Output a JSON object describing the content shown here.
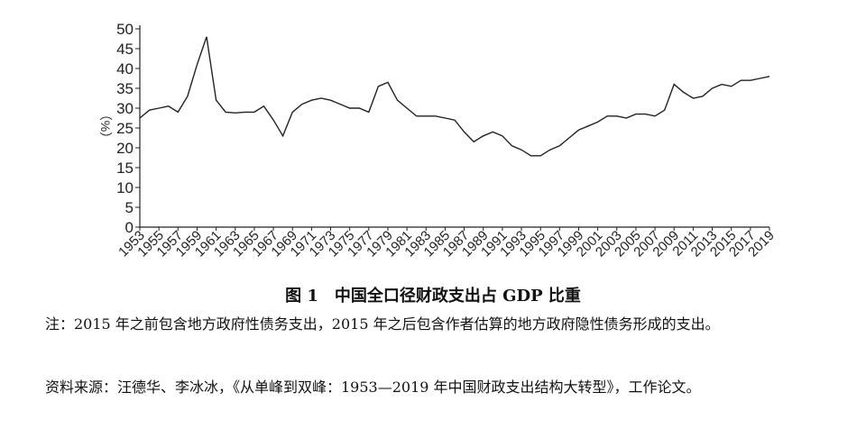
{
  "chart_data": {
    "type": "line",
    "y_label": "（%）",
    "x": [
      1953,
      1954,
      1955,
      1956,
      1957,
      1958,
      1959,
      1960,
      1961,
      1962,
      1963,
      1964,
      1965,
      1966,
      1967,
      1968,
      1969,
      1970,
      1971,
      1972,
      1973,
      1974,
      1975,
      1976,
      1977,
      1978,
      1979,
      1980,
      1981,
      1982,
      1983,
      1984,
      1985,
      1986,
      1987,
      1988,
      1989,
      1990,
      1991,
      1992,
      1993,
      1994,
      1995,
      1996,
      1997,
      1998,
      1999,
      2000,
      2001,
      2002,
      2003,
      2004,
      2005,
      2006,
      2007,
      2008,
      2009,
      2010,
      2011,
      2012,
      2013,
      2014,
      2015,
      2016,
      2017,
      2018,
      2019
    ],
    "values": [
      27.5,
      29.5,
      30,
      30.5,
      29,
      33,
      41,
      48,
      32,
      29,
      28.8,
      29,
      29,
      30.5,
      27,
      23,
      29,
      31,
      32,
      32.5,
      32,
      31,
      30,
      30,
      29,
      35.5,
      36.5,
      32,
      30,
      28,
      28,
      28,
      27.5,
      27,
      24,
      21.5,
      23,
      24,
      23,
      20.5,
      19.5,
      18,
      18,
      19.5,
      20.5,
      22.5,
      24.5,
      25.5,
      26.5,
      28,
      28,
      27.5,
      28.5,
      28.5,
      28,
      29.5,
      36,
      34,
      32.5,
      33,
      35,
      36,
      35.5,
      37,
      37,
      37.5,
      38
    ],
    "color": "#222222",
    "xlim": [
      1953,
      2019
    ],
    "xticks": [
      1953,
      1955,
      1957,
      1959,
      1961,
      1963,
      1965,
      1967,
      1969,
      1971,
      1973,
      1975,
      1977,
      1979,
      1981,
      1983,
      1985,
      1987,
      1989,
      1991,
      1993,
      1995,
      1997,
      1999,
      2001,
      2003,
      2005,
      2007,
      2009,
      2011,
      2013,
      2015,
      2017,
      2019
    ],
    "ylim": [
      0,
      50
    ],
    "yticks": [
      0,
      5,
      10,
      15,
      20,
      25,
      30,
      35,
      40,
      45,
      50
    ]
  },
  "caption": "图 1　中国全口径财政支出占 GDP 比重",
  "note": "注：2015 年之前包含地方政府性债务支出，2015 年之后包含作者估算的地方政府隐性债务形成的支出。",
  "source": "资料来源：汪德华、李冰冰，《从单峰到双峰：1953—2019 年中国财政支出结构大转型》，工作论文。"
}
